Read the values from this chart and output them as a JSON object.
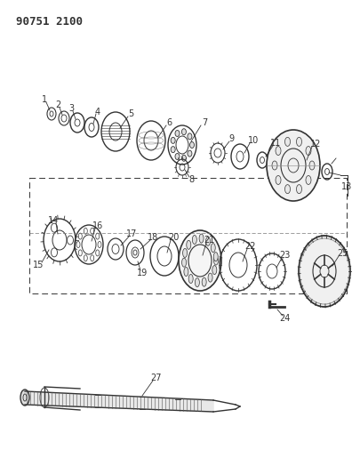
{
  "title": "90751 2100",
  "background_color": "#ffffff",
  "line_color": "#333333",
  "figsize": [
    4.05,
    5.33
  ],
  "dpi": 100
}
